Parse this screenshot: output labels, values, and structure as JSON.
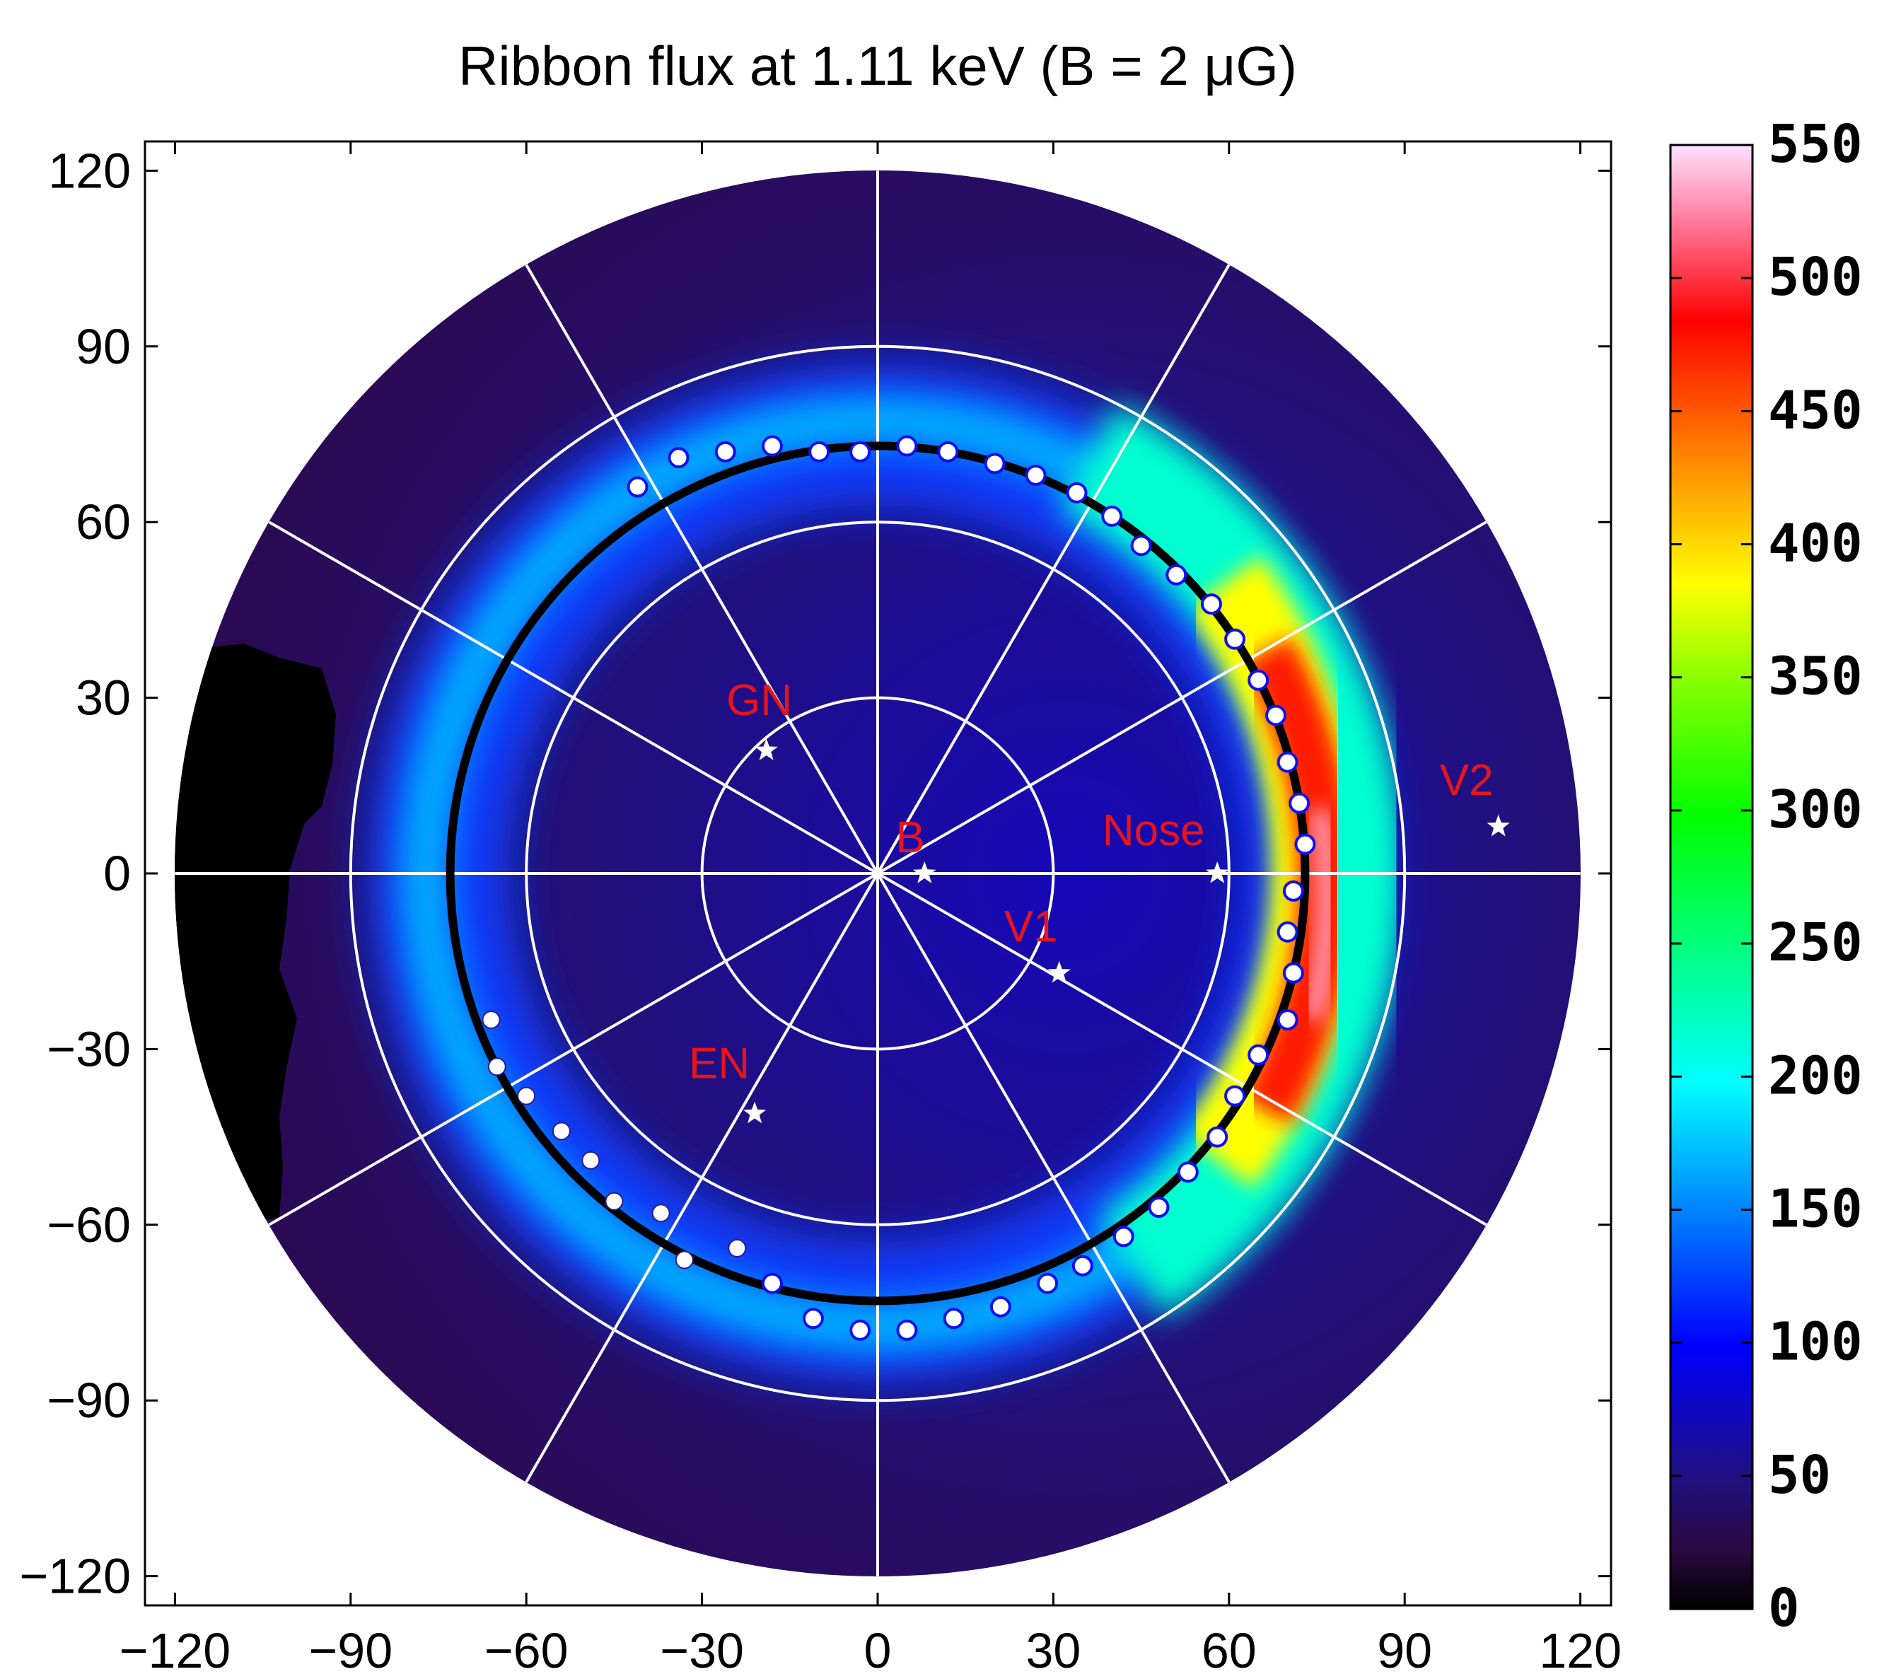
{
  "chart_data": {
    "type": "heatmap",
    "projection": "polar sky map, radial distance from B-field direction",
    "title": "Ribbon flux at 1.11 keV (B = 2 μG)",
    "x_ticks": [
      "−120",
      "−90",
      "−60",
      "−30",
      "0",
      "30",
      "60",
      "90",
      "120"
    ],
    "y_ticks": [
      "120",
      "90",
      "60",
      "30",
      "0",
      "−30",
      "−60",
      "−90",
      "−120"
    ],
    "xlim": [
      -125,
      125
    ],
    "ylim": [
      -125,
      125
    ],
    "grid": true,
    "grid_radii": [
      30,
      60,
      90
    ],
    "map_radius": 120,
    "fitted_circle_radius": 73,
    "colorbar": {
      "ticks": [
        "0",
        "50",
        "100",
        "150",
        "200",
        "250",
        "300",
        "350",
        "400",
        "450",
        "500",
        "550"
      ],
      "range": [
        0,
        550
      ],
      "colormap": "jet"
    },
    "markers": [
      {
        "label": "GN",
        "x": -19,
        "y": 21
      },
      {
        "label": "B",
        "x": 8,
        "y": 0
      },
      {
        "label": "Nose",
        "x": 58,
        "y": 0
      },
      {
        "label": "V1",
        "x": 31,
        "y": -17
      },
      {
        "label": "EN",
        "x": -21,
        "y": -41
      },
      {
        "label": "V2",
        "x": 106,
        "y": 8
      }
    ],
    "ribbon_points_upper": [
      [
        -41,
        66
      ],
      [
        -34,
        71
      ],
      [
        -26,
        72
      ],
      [
        -18,
        73
      ],
      [
        -10,
        72
      ],
      [
        -3,
        72
      ],
      [
        5,
        73
      ],
      [
        12,
        72
      ],
      [
        20,
        70
      ],
      [
        27,
        68
      ],
      [
        34,
        65
      ],
      [
        40,
        61
      ],
      [
        45,
        56
      ],
      [
        51,
        51
      ],
      [
        57,
        46
      ],
      [
        61,
        40
      ],
      [
        65,
        33
      ],
      [
        68,
        27
      ],
      [
        70,
        19
      ],
      [
        72,
        12
      ],
      [
        73,
        5
      ],
      [
        71,
        -3
      ],
      [
        70,
        -10
      ],
      [
        71,
        -17
      ],
      [
        70,
        -25
      ],
      [
        65,
        -31
      ],
      [
        61,
        -38
      ],
      [
        58,
        -45
      ],
      [
        53,
        -51
      ],
      [
        48,
        -57
      ],
      [
        42,
        -62
      ],
      [
        35,
        -67
      ],
      [
        29,
        -70
      ],
      [
        21,
        -74
      ],
      [
        13,
        -76
      ],
      [
        5,
        -78
      ],
      [
        -3,
        -78
      ],
      [
        -11,
        -76
      ],
      [
        -18,
        -70
      ]
    ],
    "ribbon_points_lower": [
      [
        -66,
        -25
      ],
      [
        -65,
        -33
      ],
      [
        -60,
        -38
      ],
      [
        -54,
        -44
      ],
      [
        -49,
        -49
      ],
      [
        -45,
        -56
      ],
      [
        -37,
        -58
      ],
      [
        -33,
        -66
      ],
      [
        -24,
        -64
      ]
    ]
  }
}
